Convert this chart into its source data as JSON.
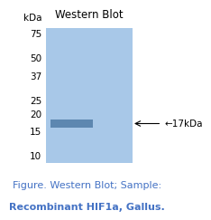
{
  "title": "Western Blot",
  "figure_caption_line1": "Figure. Western Blot; Sample:",
  "figure_caption_line2": "Recombinant HIF1a, Gallus.",
  "caption_color": "#4472c4",
  "gel_color": "#a8c8e8",
  "band_color": "#5580aa",
  "background_color": "#ffffff",
  "kda_label": "kDa",
  "marker_positions": [
    75,
    50,
    37,
    25,
    20,
    15,
    10
  ],
  "band_kda": 17,
  "band_label": "←17kDa",
  "ymin": 9,
  "ymax": 82,
  "title_fontsize": 8.5,
  "caption_fontsize": 8.0,
  "marker_fontsize": 7.5,
  "band_label_fontsize": 7.5
}
